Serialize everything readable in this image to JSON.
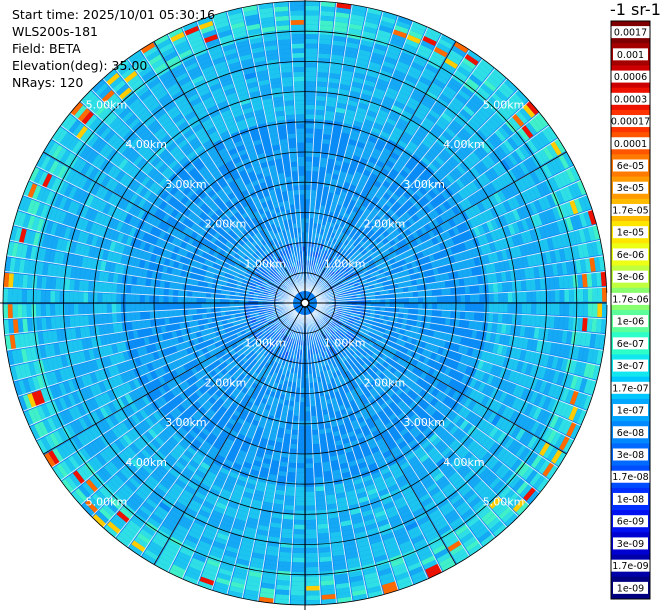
{
  "info": {
    "start_time": "Start time: 2025/10/01 05:30:16",
    "instrument": "WLS200s-181",
    "field": "Field: BETA",
    "elevation": "Elevation(deg): 35.00",
    "nrays": "NRays: 120"
  },
  "colorbar": {
    "unit_label": "-1 sr-1",
    "ticks": [
      "0.0017",
      "0.001",
      "0.0006",
      "0.0003",
      "0.00017",
      "0.0001",
      "6e-05",
      "3e-05",
      "1.7e-05",
      "1e-05",
      "6e-06",
      "3e-06",
      "1.7e-06",
      "1e-06",
      "6e-07",
      "3e-07",
      "1.7e-07",
      "1e-07",
      "6e-08",
      "3e-08",
      "1.7e-08",
      "1e-08",
      "6e-09",
      "3e-09",
      "1.7e-09",
      "1e-09"
    ],
    "colors": [
      "#7f0000",
      "#a50000",
      "#cc0000",
      "#ee1100",
      "#ff3300",
      "#ff5500",
      "#ff7a00",
      "#ff9a00",
      "#ffbb00",
      "#ffe600",
      "#ecff14",
      "#c0ff3d",
      "#8aff6d",
      "#5dff9a",
      "#2effc8",
      "#12e6ee",
      "#00c8ff",
      "#00a6ff",
      "#0088ff",
      "#006aff",
      "#004cff",
      "#002eff",
      "#0010f0",
      "#0000d0",
      "#0000a8",
      "#000080"
    ]
  },
  "map": {
    "range_labels": [
      "1.00km",
      "2.00km",
      "3.00km",
      "4.00km",
      "5.00km"
    ],
    "max_range_km": 5.0,
    "nrays": 120,
    "colors": {
      "ring": "#000000",
      "label": "#ffffff",
      "background": "#ffffff"
    }
  }
}
